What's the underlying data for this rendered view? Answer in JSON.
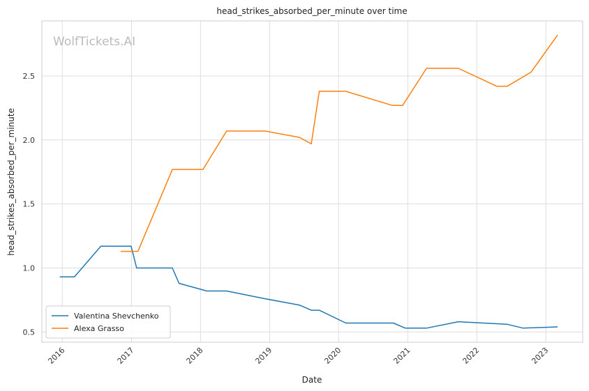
{
  "chart_data": {
    "type": "line",
    "title": "head_strikes_absorbed_per_minute over time",
    "xlabel": "Date",
    "ylabel": "head_strikes_absorbed_per_minute",
    "watermark": "WolfTickets.AI",
    "xlim": [
      "2015-09-15",
      "2023-07-15"
    ],
    "ylim": [
      0.42,
      2.93
    ],
    "x_ticks": [
      "2016",
      "2017",
      "2018",
      "2019",
      "2020",
      "2021",
      "2022",
      "2023"
    ],
    "y_ticks": [
      0.5,
      1.0,
      1.5,
      2.0,
      2.5
    ],
    "y_tick_labels": [
      "0.5",
      "1.0",
      "1.5",
      "2.0",
      "2.5"
    ],
    "grid": true,
    "legend_position": "lower-left",
    "series": [
      {
        "name": "Valentina Shevchenko",
        "color": "#1f77b4",
        "x": [
          "2015-12-19",
          "2016-03-05",
          "2016-07-23",
          "2016-12-30",
          "2017-01-28",
          "2017-08-05",
          "2017-09-09",
          "2018-02-03",
          "2018-05-19",
          "2018-12-08",
          "2019-06-08",
          "2019-08-10",
          "2019-09-21",
          "2020-02-08",
          "2020-10-17",
          "2020-12-19",
          "2021-04-10",
          "2021-09-25",
          "2022-06-11",
          "2022-09-03",
          "2023-03-04"
        ],
        "y": [
          0.93,
          0.93,
          1.17,
          1.17,
          1.0,
          1.0,
          0.88,
          0.82,
          0.82,
          0.76,
          0.71,
          0.67,
          0.67,
          0.57,
          0.57,
          0.53,
          0.53,
          0.58,
          0.56,
          0.53,
          0.54
        ]
      },
      {
        "name": "Alexa Grasso",
        "color": "#ff7f0e",
        "x": [
          "2016-11-05",
          "2017-02-04",
          "2017-08-05",
          "2018-01-14",
          "2018-05-19",
          "2018-12-08",
          "2019-06-08",
          "2019-08-10",
          "2019-09-21",
          "2020-02-08",
          "2020-10-10",
          "2020-12-05",
          "2021-04-10",
          "2021-09-25",
          "2022-04-16",
          "2022-06-11",
          "2022-10-15",
          "2023-03-04"
        ],
        "y": [
          1.13,
          1.13,
          1.77,
          1.77,
          2.07,
          2.07,
          2.02,
          1.97,
          2.38,
          2.38,
          2.27,
          2.27,
          2.56,
          2.56,
          2.42,
          2.42,
          2.53,
          2.82
        ]
      }
    ]
  }
}
